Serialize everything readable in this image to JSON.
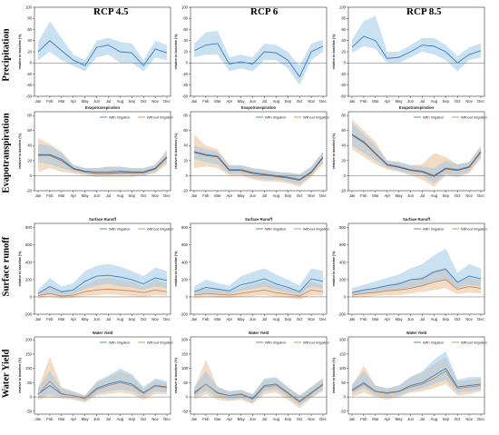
{
  "colors": {
    "with": "#3b7fc0",
    "with_band": "#9fc8e8",
    "without": "#c8885a",
    "without_band": "#e9b98a",
    "brown": "#9a5a3a",
    "brown_band": "#c89a80",
    "baseline": "#666666"
  },
  "column_titles": [
    "RCP 4.5",
    "RCP 6",
    "RCP 8.5"
  ],
  "row_titles": [
    "Precipitation",
    "Evapotranspiration",
    "Surface runoff",
    "Water Yield"
  ],
  "ylabel": "relative to baseline (%)",
  "months": [
    "Jan",
    "Feb",
    "Mar",
    "Apr",
    "May",
    "Jun",
    "Jul",
    "Aug",
    "Sep",
    "Oct",
    "Nov",
    "Dec"
  ],
  "legend": {
    "with": "With Irrigation",
    "without": "Without Irrigation"
  },
  "chart_data": [
    {
      "type": "line",
      "row": 0,
      "col": 0,
      "title": "",
      "ylim": [
        -60,
        100
      ],
      "yticks": [
        -60,
        -40,
        -20,
        0,
        20,
        40,
        60,
        80,
        100
      ],
      "series": [
        {
          "values": [
            20,
            40,
            22,
            5,
            -5,
            28,
            32,
            20,
            18,
            -5,
            25,
            18
          ],
          "lower": [
            5,
            20,
            5,
            -5,
            -15,
            10,
            15,
            0,
            0,
            -15,
            10,
            5
          ],
          "upper": [
            38,
            75,
            45,
            15,
            5,
            40,
            45,
            38,
            35,
            5,
            40,
            32
          ]
        }
      ]
    },
    {
      "type": "line",
      "row": 0,
      "col": 1,
      "title": "",
      "ylim": [
        -60,
        100
      ],
      "yticks": [
        -60,
        -40,
        -20,
        0,
        20,
        40,
        60,
        80,
        100
      ],
      "series": [
        {
          "values": [
            22,
            32,
            35,
            -2,
            2,
            -2,
            20,
            18,
            5,
            -25,
            20,
            30
          ],
          "lower": [
            10,
            15,
            15,
            -15,
            -10,
            -15,
            5,
            5,
            -10,
            -40,
            5,
            20
          ],
          "upper": [
            35,
            55,
            58,
            10,
            15,
            10,
            35,
            32,
            20,
            -5,
            35,
            42
          ]
        }
      ]
    },
    {
      "type": "line",
      "row": 0,
      "col": 2,
      "title": "",
      "ylim": [
        -60,
        100
      ],
      "yticks": [
        -60,
        -40,
        -20,
        0,
        20,
        40,
        60,
        80,
        100
      ],
      "series": [
        {
          "values": [
            28,
            48,
            40,
            8,
            10,
            20,
            32,
            30,
            20,
            0,
            15,
            22
          ],
          "lower": [
            18,
            30,
            25,
            0,
            0,
            10,
            20,
            15,
            5,
            -15,
            5,
            10
          ],
          "upper": [
            42,
            75,
            85,
            20,
            20,
            32,
            45,
            45,
            32,
            12,
            28,
            35
          ]
        }
      ]
    },
    {
      "type": "line",
      "row": 1,
      "col": 0,
      "title": "Evapotranspiration",
      "ylim": [
        -20,
        85
      ],
      "yticks": [
        -20,
        0,
        20,
        40,
        60,
        80
      ],
      "series": [
        {
          "name": "With Irrigation",
          "values": [
            28,
            28,
            22,
            10,
            6,
            5,
            5,
            6,
            5,
            5,
            10,
            25
          ],
          "lower": [
            18,
            15,
            10,
            5,
            2,
            0,
            0,
            0,
            0,
            0,
            5,
            18
          ],
          "upper": [
            42,
            40,
            30,
            15,
            10,
            10,
            12,
            12,
            10,
            10,
            15,
            32
          ]
        },
        {
          "name": "Without Irrigation",
          "values": [
            27,
            27,
            20,
            9,
            5,
            3,
            3,
            4,
            4,
            4,
            9,
            24
          ],
          "lower": [
            5,
            10,
            5,
            3,
            0,
            -2,
            -2,
            -2,
            -2,
            0,
            3,
            15
          ],
          "upper": [
            50,
            42,
            32,
            14,
            10,
            10,
            12,
            12,
            10,
            10,
            14,
            35
          ]
        }
      ]
    },
    {
      "type": "line",
      "row": 1,
      "col": 1,
      "title": "Evapotranspiration",
      "ylim": [
        -20,
        85
      ],
      "yticks": [
        -20,
        0,
        20,
        40,
        60,
        80
      ],
      "series": [
        {
          "name": "With Irrigation",
          "values": [
            32,
            28,
            26,
            8,
            8,
            4,
            2,
            0,
            -2,
            -5,
            5,
            25
          ],
          "lower": [
            22,
            18,
            15,
            2,
            2,
            -2,
            -5,
            -5,
            -8,
            -12,
            0,
            18
          ],
          "upper": [
            40,
            35,
            32,
            14,
            14,
            10,
            8,
            5,
            4,
            2,
            12,
            32
          ]
        },
        {
          "name": "Without Irrigation",
          "values": [
            31,
            27,
            25,
            7,
            7,
            3,
            1,
            -1,
            -3,
            -6,
            4,
            24
          ],
          "lower": [
            10,
            12,
            10,
            0,
            0,
            -5,
            -8,
            -8,
            -10,
            -15,
            -2,
            15
          ],
          "upper": [
            55,
            40,
            35,
            14,
            14,
            10,
            8,
            5,
            4,
            2,
            12,
            32
          ]
        }
      ]
    },
    {
      "type": "line",
      "row": 1,
      "col": 2,
      "title": "Evapotranspiration",
      "ylim": [
        -20,
        85
      ],
      "yticks": [
        -20,
        0,
        20,
        40,
        60,
        80
      ],
      "series": [
        {
          "name": "With Irrigation",
          "values": [
            55,
            45,
            30,
            15,
            12,
            8,
            6,
            0,
            10,
            8,
            12,
            32
          ],
          "lower": [
            40,
            30,
            20,
            10,
            6,
            2,
            0,
            -10,
            2,
            0,
            5,
            25
          ],
          "upper": [
            70,
            55,
            40,
            20,
            18,
            14,
            12,
            10,
            20,
            15,
            18,
            38
          ]
        },
        {
          "name": "Without Irrigation",
          "values": [
            54,
            44,
            29,
            14,
            11,
            7,
            5,
            -1,
            9,
            7,
            11,
            31
          ],
          "lower": [
            35,
            25,
            15,
            8,
            5,
            0,
            -5,
            -15,
            0,
            -2,
            3,
            22
          ],
          "upper": [
            75,
            60,
            45,
            20,
            18,
            14,
            15,
            30,
            25,
            15,
            18,
            40
          ]
        }
      ]
    },
    {
      "type": "line",
      "row": 2,
      "col": 0,
      "title": "Surface Runoff",
      "ylim": [
        -200,
        850
      ],
      "yticks": [
        -200,
        0,
        200,
        400,
        600,
        800
      ],
      "series": [
        {
          "name": "With Irrigation",
          "values": [
            40,
            120,
            60,
            80,
            180,
            240,
            250,
            230,
            200,
            150,
            220,
            190
          ],
          "lower": [
            10,
            50,
            20,
            30,
            90,
            130,
            150,
            120,
            110,
            80,
            120,
            100
          ],
          "upper": [
            80,
            220,
            120,
            160,
            300,
            360,
            380,
            350,
            300,
            240,
            340,
            300
          ]
        },
        {
          "name": "Without Irrigation",
          "values": [
            15,
            40,
            10,
            20,
            60,
            80,
            90,
            80,
            70,
            50,
            80,
            60
          ],
          "lower": [
            -20,
            0,
            -20,
            -10,
            10,
            20,
            30,
            20,
            10,
            0,
            20,
            10
          ],
          "upper": [
            50,
            110,
            60,
            70,
            140,
            200,
            220,
            200,
            180,
            120,
            200,
            160
          ]
        }
      ]
    },
    {
      "type": "line",
      "row": 2,
      "col": 1,
      "title": "Surface Runoff",
      "ylim": [
        -200,
        850
      ],
      "yticks": [
        -200,
        0,
        200,
        400,
        600,
        800
      ],
      "series": [
        {
          "name": "With Irrigation",
          "values": [
            60,
            110,
            90,
            70,
            140,
            170,
            210,
            150,
            110,
            60,
            210,
            180
          ],
          "lower": [
            20,
            50,
            40,
            30,
            70,
            90,
            120,
            80,
            50,
            20,
            120,
            90
          ],
          "upper": [
            120,
            200,
            160,
            130,
            240,
            290,
            330,
            260,
            200,
            130,
            330,
            300
          ]
        },
        {
          "name": "Without Irrigation",
          "values": [
            20,
            40,
            30,
            20,
            40,
            60,
            80,
            50,
            30,
            10,
            80,
            60
          ],
          "lower": [
            -20,
            0,
            -10,
            -10,
            0,
            10,
            20,
            0,
            -10,
            -30,
            20,
            10
          ],
          "upper": [
            60,
            100,
            80,
            60,
            110,
            150,
            180,
            130,
            100,
            60,
            180,
            140
          ]
        }
      ]
    },
    {
      "type": "line",
      "row": 2,
      "col": 2,
      "title": "Surface Runoff",
      "ylim": [
        -200,
        850
      ],
      "yticks": [
        -200,
        0,
        200,
        400,
        600,
        800
      ],
      "series": [
        {
          "name": "With Irrigation",
          "values": [
            50,
            80,
            100,
            130,
            150,
            200,
            210,
            290,
            320,
            170,
            240,
            210
          ],
          "lower": [
            20,
            40,
            50,
            70,
            80,
            110,
            120,
            170,
            200,
            100,
            140,
            120
          ],
          "upper": [
            100,
            140,
            180,
            220,
            260,
            330,
            380,
            480,
            560,
            280,
            380,
            330
          ]
        },
        {
          "name": "Without Irrigation",
          "values": [
            20,
            40,
            50,
            70,
            80,
            100,
            130,
            170,
            200,
            90,
            120,
            100
          ],
          "lower": [
            -10,
            0,
            10,
            20,
            20,
            40,
            60,
            80,
            100,
            30,
            50,
            40
          ],
          "upper": [
            60,
            90,
            110,
            140,
            170,
            200,
            240,
            300,
            340,
            180,
            220,
            200
          ]
        }
      ]
    },
    {
      "type": "line",
      "row": 3,
      "col": 0,
      "title": "Water Yield",
      "ylim": [
        -60,
        210
      ],
      "yticks": [
        -50,
        0,
        50,
        100,
        150,
        200
      ],
      "series": [
        {
          "name": "With Irrigation",
          "values": [
            10,
            40,
            10,
            5,
            -5,
            30,
            45,
            55,
            45,
            15,
            40,
            35
          ],
          "lower": [
            -5,
            10,
            0,
            -5,
            -15,
            10,
            20,
            25,
            20,
            0,
            20,
            15
          ],
          "upper": [
            30,
            90,
            30,
            20,
            5,
            55,
            75,
            100,
            80,
            35,
            65,
            55
          ]
        },
        {
          "name": "Without Irrigation",
          "values": [
            8,
            55,
            12,
            4,
            -6,
            25,
            40,
            50,
            40,
            12,
            38,
            32
          ],
          "lower": [
            -10,
            0,
            -5,
            -10,
            -20,
            5,
            10,
            15,
            10,
            -10,
            10,
            10
          ],
          "upper": [
            30,
            140,
            35,
            20,
            5,
            50,
            70,
            90,
            75,
            30,
            60,
            50
          ]
        }
      ]
    },
    {
      "type": "line",
      "row": 3,
      "col": 1,
      "title": "Water Yield",
      "ylim": [
        -60,
        210
      ],
      "yticks": [
        -50,
        0,
        50,
        100,
        150,
        200
      ],
      "series": [
        {
          "name": "With Irrigation",
          "values": [
            15,
            45,
            15,
            5,
            10,
            -5,
            40,
            45,
            15,
            -15,
            15,
            45
          ],
          "lower": [
            0,
            20,
            0,
            -10,
            -5,
            -20,
            20,
            25,
            0,
            -30,
            0,
            25
          ],
          "upper": [
            35,
            90,
            35,
            20,
            25,
            10,
            65,
            70,
            35,
            5,
            35,
            65
          ]
        },
        {
          "name": "Without Irrigation",
          "values": [
            10,
            45,
            12,
            4,
            8,
            -8,
            35,
            40,
            12,
            -18,
            12,
            42
          ],
          "lower": [
            -10,
            10,
            -10,
            -15,
            -10,
            -25,
            10,
            15,
            -10,
            -40,
            -5,
            20
          ],
          "upper": [
            30,
            130,
            35,
            20,
            25,
            10,
            60,
            65,
            35,
            5,
            35,
            65
          ]
        }
      ]
    },
    {
      "type": "line",
      "row": 3,
      "col": 2,
      "title": "Water Yield",
      "ylim": [
        -60,
        210
      ],
      "yticks": [
        -50,
        0,
        50,
        100,
        150,
        200
      ],
      "series": [
        {
          "name": "With Irrigation",
          "values": [
            25,
            50,
            20,
            15,
            20,
            40,
            50,
            75,
            100,
            35,
            40,
            45
          ],
          "lower": [
            10,
            30,
            5,
            0,
            5,
            20,
            30,
            45,
            60,
            15,
            20,
            25
          ],
          "upper": [
            45,
            90,
            40,
            30,
            40,
            70,
            90,
            130,
            160,
            60,
            70,
            70
          ]
        },
        {
          "name": "Without Irrigation",
          "values": [
            20,
            45,
            18,
            12,
            18,
            35,
            45,
            65,
            90,
            30,
            35,
            40
          ],
          "lower": [
            0,
            15,
            0,
            -10,
            0,
            15,
            20,
            30,
            45,
            5,
            10,
            20
          ],
          "upper": [
            40,
            110,
            40,
            30,
            40,
            70,
            85,
            115,
            140,
            55,
            60,
            65
          ]
        }
      ]
    }
  ]
}
